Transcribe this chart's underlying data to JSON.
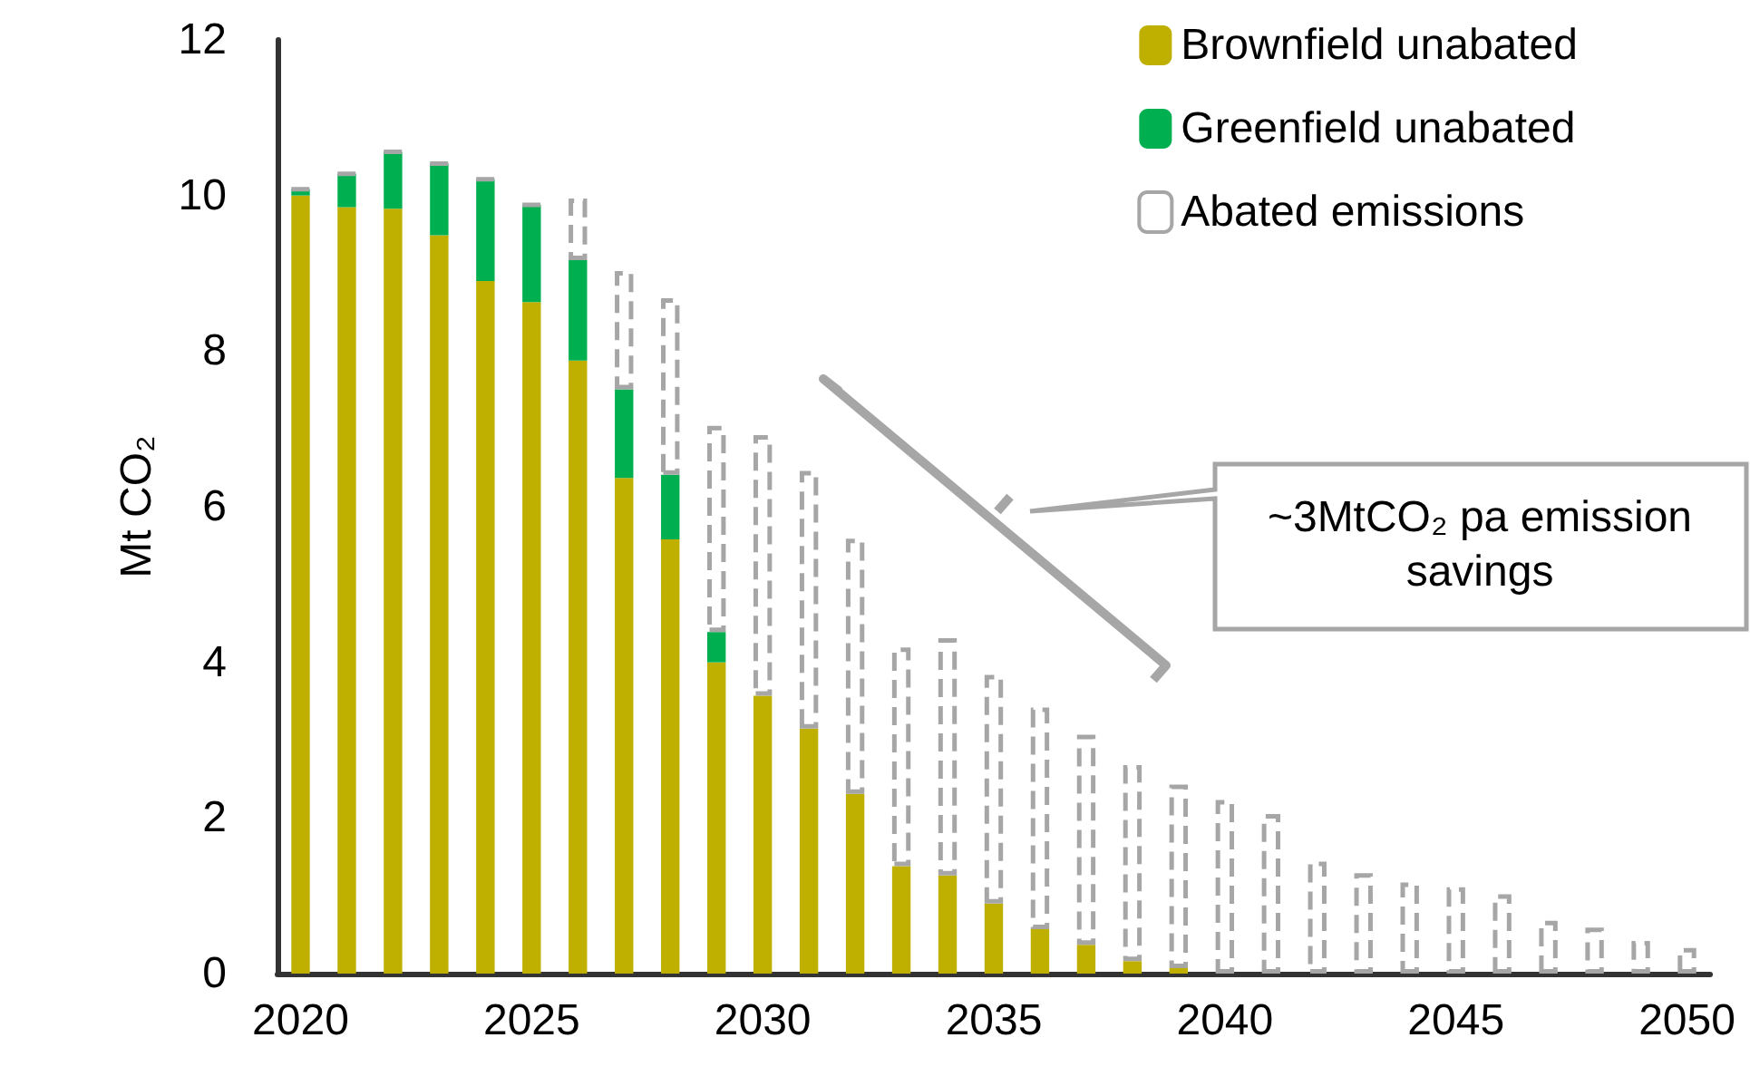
{
  "chart_data": {
    "type": "bar",
    "stacked": true,
    "ylabel": "Mt CO₂",
    "categories": [
      "2020",
      null,
      null,
      null,
      null,
      "2025",
      null,
      null,
      null,
      null,
      "2030",
      null,
      null,
      null,
      null,
      "2035",
      null,
      null,
      null,
      null,
      "2040",
      null,
      null,
      null,
      null,
      "2045",
      null,
      null,
      null,
      null,
      "2050"
    ],
    "series": [
      {
        "name": "Brownfield unabated",
        "color": "#bfb000",
        "values": [
          10.0,
          9.85,
          9.83,
          9.49,
          8.9,
          8.63,
          7.88,
          6.37,
          5.58,
          4.0,
          3.57,
          3.15,
          2.31,
          1.38,
          1.26,
          0.9,
          0.57,
          0.37,
          0.16,
          0.07,
          0,
          0,
          0,
          0,
          0,
          0,
          0,
          0,
          0,
          0,
          0
        ]
      },
      {
        "name": "Greenfield unabated",
        "color": "#00b050",
        "values": [
          0.08,
          0.43,
          0.73,
          0.92,
          1.31,
          1.25,
          1.29,
          1.14,
          0.83,
          0.39,
          0,
          0,
          0,
          0,
          0,
          0,
          0,
          0,
          0,
          0,
          0,
          0,
          0,
          0,
          0,
          0,
          0,
          0,
          0,
          0,
          0
        ]
      },
      {
        "name": "Abated emissions",
        "color": "#a6a6a6",
        "line_style": "dashed",
        "values": [
          0,
          0,
          0,
          0,
          0,
          0,
          0.79,
          1.52,
          2.27,
          2.65,
          3.35,
          3.31,
          3.28,
          2.81,
          3.05,
          2.94,
          2.85,
          2.7,
          2.52,
          2.36,
          2.23,
          2.05,
          1.44,
          1.29,
          1.17,
          1.11,
          1.02,
          0.68,
          0.59,
          0.42,
          0.33
        ]
      }
    ],
    "ylim": [
      0,
      12
    ],
    "yticks": [
      0,
      2,
      4,
      6,
      8,
      10,
      12
    ],
    "grid": false,
    "legend": "top right",
    "annotations": [
      "~3MtCO₂ pa emission savings"
    ]
  }
}
